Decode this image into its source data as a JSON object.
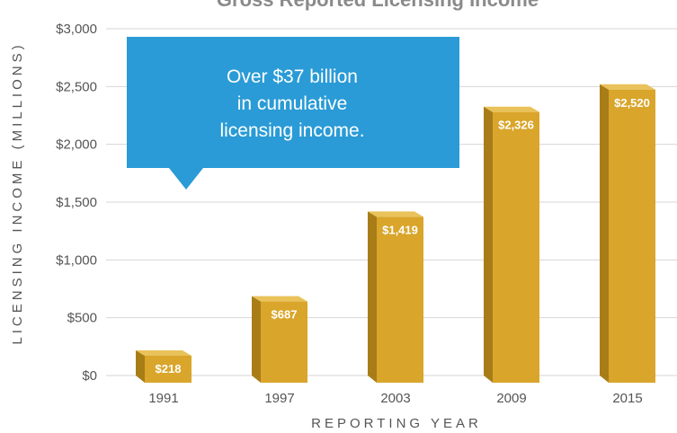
{
  "chart_data": {
    "type": "bar",
    "title": "Gross Reported Licensing Income",
    "xlabel": "REPORTING YEAR",
    "ylabel": "LICENSING INCOME (MILLIONS)",
    "categories": [
      "1991",
      "1997",
      "2003",
      "2009",
      "2015"
    ],
    "values": [
      218,
      687,
      1419,
      2326,
      2520
    ],
    "data_labels": [
      "$218",
      "$687",
      "$1,419",
      "$2,326",
      "$2,520"
    ],
    "ylim": [
      0,
      3000
    ],
    "yticks": [
      0,
      500,
      1000,
      1500,
      2000,
      2500,
      3000
    ],
    "ytick_labels": [
      "$0",
      "$500",
      "$1,000",
      "$1,500",
      "$2,000",
      "$2,500",
      "$3,000"
    ],
    "grid": true,
    "bar_color": "#d9a52a",
    "bar_side_color": "#a87d18",
    "bar_top_color": "#e9c25a"
  },
  "callout": {
    "lines": [
      "Over $37 billion",
      "in cumulative",
      "licensing income."
    ],
    "color": "#2a9bd6"
  }
}
